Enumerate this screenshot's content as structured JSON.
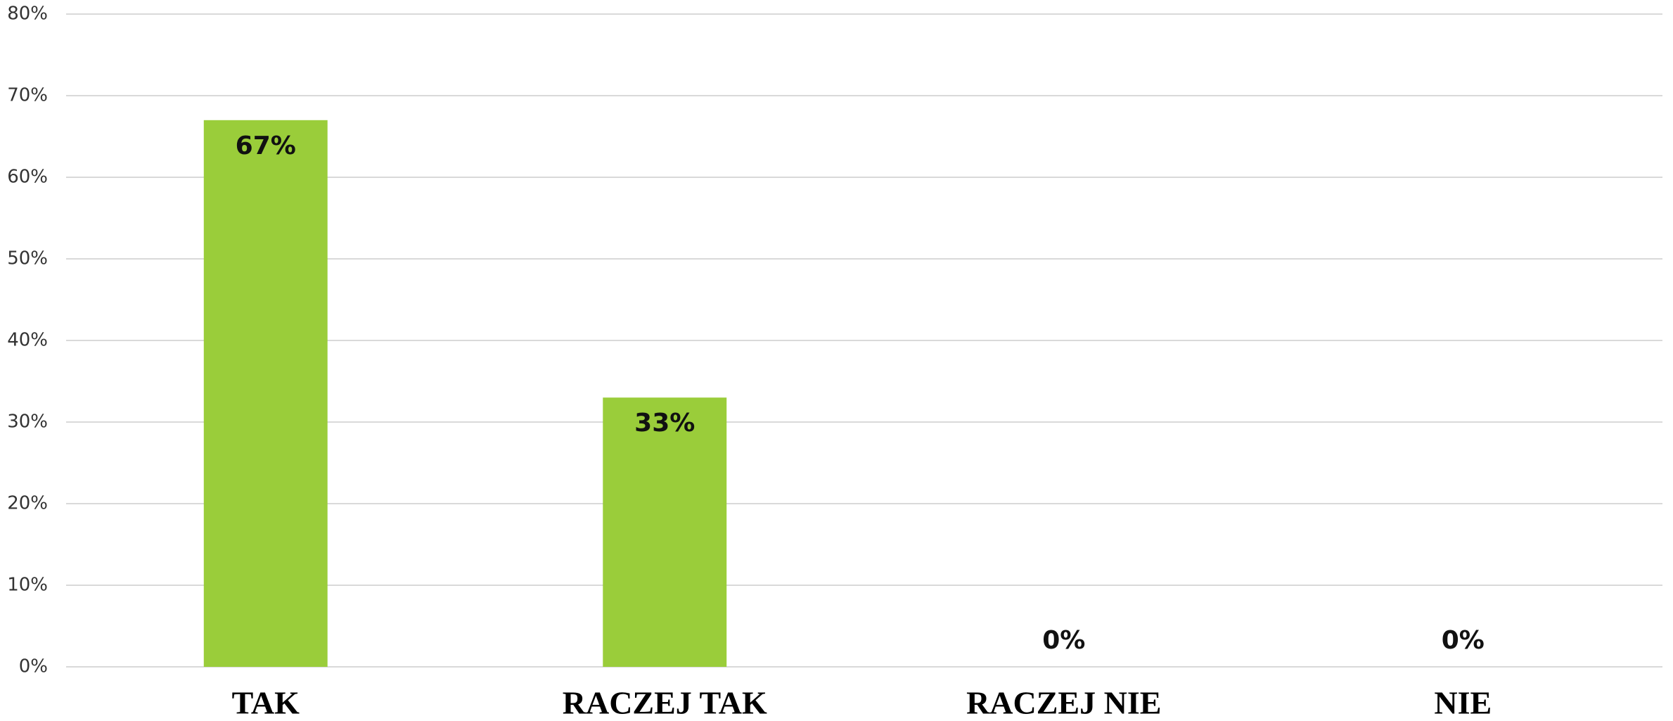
{
  "chart_data": {
    "type": "bar",
    "categories": [
      "TAK",
      "RACZEJ TAK",
      "RACZEJ NIE",
      "NIE"
    ],
    "values": [
      67,
      33,
      0,
      0
    ],
    "value_labels": [
      "67%",
      "33%",
      "0%",
      "0%"
    ],
    "color": "#9acd3a",
    "ylim": [
      0,
      80
    ],
    "yticks": [
      {
        "value": 0,
        "label": "0%"
      },
      {
        "value": 10,
        "label": "10%"
      },
      {
        "value": 20,
        "label": "20%"
      },
      {
        "value": 30,
        "label": "30%"
      },
      {
        "value": 40,
        "label": "40%"
      },
      {
        "value": 50,
        "label": "50%"
      },
      {
        "value": 60,
        "label": "60%"
      },
      {
        "value": 70,
        "label": "70%"
      },
      {
        "value": 80,
        "label": "80%"
      }
    ],
    "grid": true
  }
}
